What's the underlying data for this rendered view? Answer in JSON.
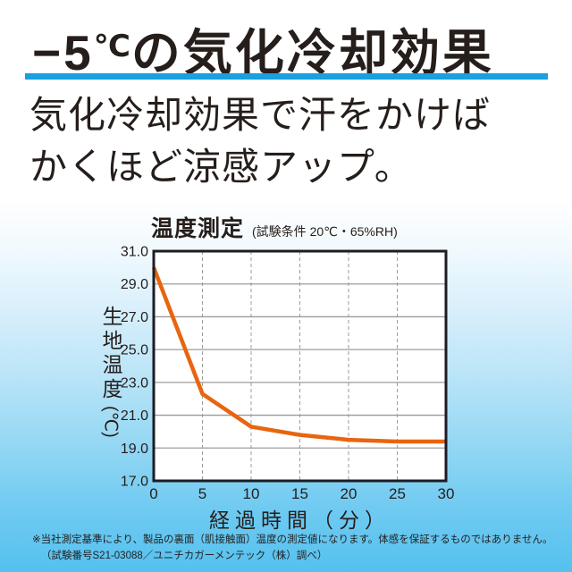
{
  "page": {
    "title_minus5": "−5",
    "title_degree": "℃",
    "title_rest": "の気化冷却効果",
    "subtitle_line1": "気化冷却効果で汗をかけば",
    "subtitle_line2": "かくほど涼感アップ。",
    "accent_blue": "#18a0e0",
    "background_bottom_color": "#55c1ef"
  },
  "chart_data": {
    "type": "line",
    "title": "温度測定",
    "condition": "(試験条件 20℃・65%RH)",
    "xlabel": "経過時間（分）",
    "ylabel": "生地温度(℃)",
    "ylabel_main": "生地温度",
    "ylabel_unit": "(℃)",
    "x": [
      0,
      5,
      10,
      15,
      20,
      25,
      30
    ],
    "values": [
      30.0,
      22.3,
      20.3,
      19.8,
      19.5,
      19.4,
      19.4
    ],
    "xlim": [
      0,
      30
    ],
    "ylim": [
      17,
      31
    ],
    "xticks": [
      "0",
      "5",
      "10",
      "15",
      "20",
      "25",
      "30"
    ],
    "yticks": [
      "31.0",
      "29.0",
      "27.0",
      "25.0",
      "23.0",
      "21.0",
      "19.0",
      "17.0"
    ],
    "grid": {
      "horizontal": "solid",
      "vertical": "dashed"
    },
    "line_color": "#e8650f",
    "border_color": "#1c1c24",
    "grid_color": "#9b9b9b",
    "plot_background": "#ffffff",
    "legend": "none"
  },
  "footer": {
    "line1": "※当社測定基準により、製品の裏面（肌接触面）温度の測定値になります。体感を保証するものではありません。",
    "line2": "（試験番号S21-03088／ユニチカガーメンテック（株）調べ）"
  }
}
